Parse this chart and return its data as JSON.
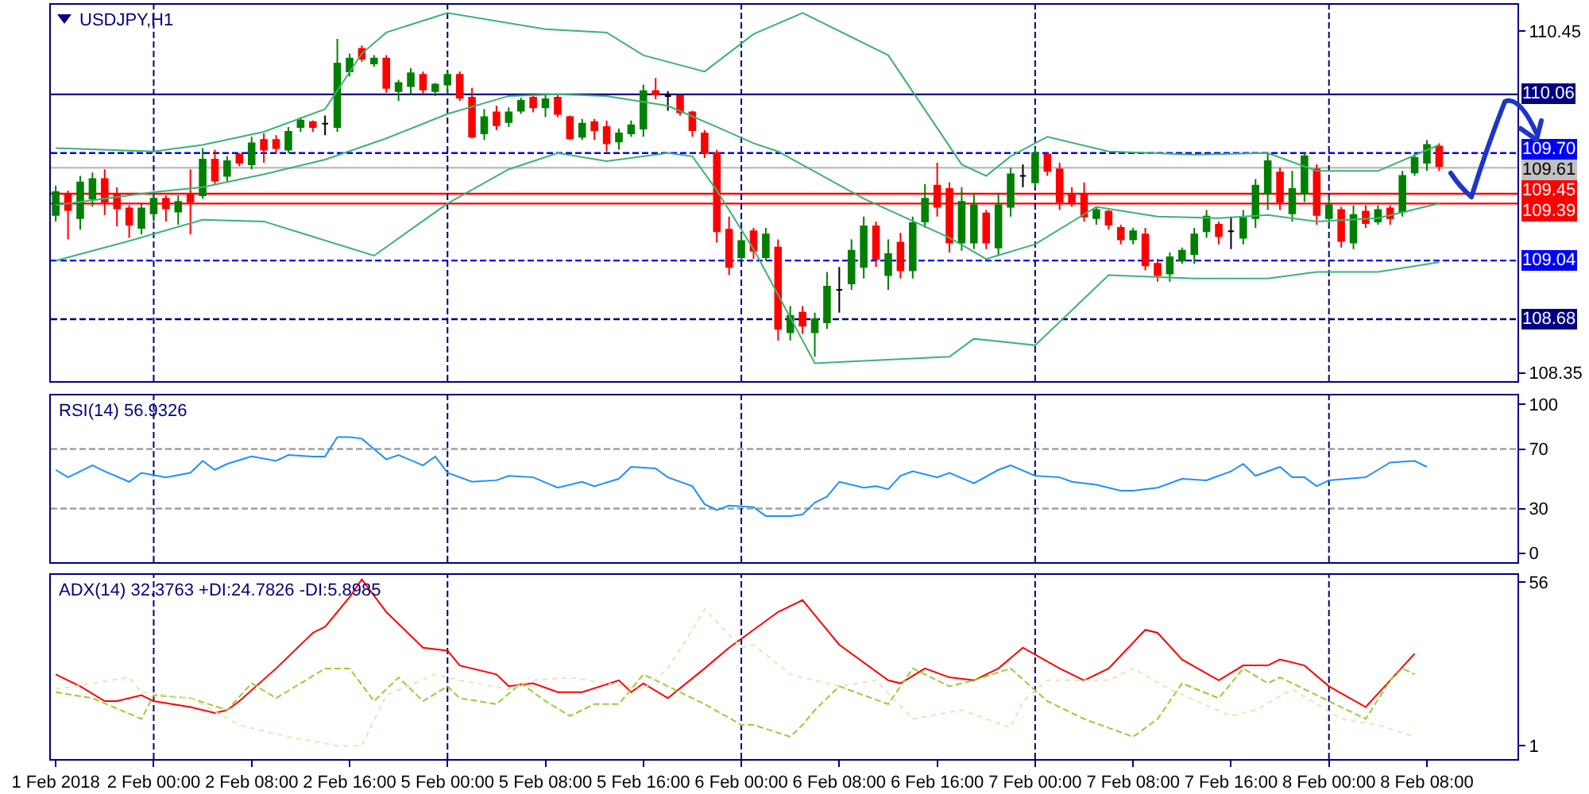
{
  "chart_data": [
    {
      "type": "candlestick",
      "title": "USDJPY,H1",
      "tick_labels": "y",
      "categories": [
        "1 Feb 2018",
        null,
        null,
        null,
        null,
        null,
        null,
        null,
        "2 Feb 00:00",
        null,
        null,
        null,
        null,
        null,
        null,
        null,
        "2 Feb 08:00",
        null,
        null,
        null,
        null,
        null,
        null,
        null,
        "2 Feb 16:00",
        null,
        null,
        null,
        null,
        null,
        null,
        null,
        "5 Feb 00:00",
        null,
        null,
        null,
        null,
        null,
        null,
        null,
        "5 Feb 08:00",
        null,
        null,
        null,
        null,
        null,
        null,
        null,
        "5 Feb 16:00",
        null,
        null,
        null,
        null,
        null,
        null,
        null,
        "6 Feb 00:00",
        null,
        null,
        null,
        null,
        null,
        null,
        null,
        "6 Feb 08:00",
        null,
        null,
        null,
        null,
        null,
        null,
        null,
        "6 Feb 16:00",
        null,
        null,
        null,
        null,
        null,
        null,
        null,
        "7 Feb 00:00",
        null,
        null,
        null,
        null,
        null,
        null,
        null,
        "7 Feb 08:00",
        null,
        null,
        null,
        null,
        null,
        null,
        null,
        "7 Feb 16:00",
        null,
        null,
        null,
        null,
        null,
        null,
        null,
        "8 Feb 00:00",
        null,
        null,
        null,
        null,
        null,
        null,
        null,
        "8 Feb 08:00",
        null
      ],
      "ylim": [
        108.3,
        110.61
      ],
      "yticks": [
        110.45,
        108.35
      ],
      "ohlc": [
        [
          109.32,
          109.5,
          109.28,
          109.46
        ],
        [
          109.44,
          109.47,
          109.17,
          109.35
        ],
        [
          109.3,
          109.56,
          109.23,
          109.52
        ],
        [
          109.42,
          109.58,
          109.37,
          109.54
        ],
        [
          109.54,
          109.6,
          109.32,
          109.4
        ],
        [
          109.45,
          109.49,
          109.25,
          109.36
        ],
        [
          109.36,
          109.38,
          109.18,
          109.26
        ],
        [
          109.24,
          109.39,
          109.2,
          109.36
        ],
        [
          109.33,
          109.45,
          109.28,
          109.42
        ],
        [
          109.42,
          109.44,
          109.28,
          109.36
        ],
        [
          109.34,
          109.44,
          109.26,
          109.4
        ],
        [
          109.44,
          109.6,
          109.2,
          109.4
        ],
        [
          109.44,
          109.73,
          109.42,
          109.66
        ],
        [
          109.66,
          109.72,
          109.51,
          109.53
        ],
        [
          109.56,
          109.68,
          109.52,
          109.65
        ],
        [
          109.69,
          109.7,
          109.62,
          109.64
        ],
        [
          109.63,
          109.8,
          109.6,
          109.76
        ],
        [
          109.78,
          109.82,
          109.64,
          109.72
        ],
        [
          109.78,
          109.81,
          109.7,
          109.73
        ],
        [
          109.72,
          109.86,
          109.7,
          109.83
        ],
        [
          109.86,
          109.92,
          109.83,
          109.9
        ],
        [
          109.89,
          109.9,
          109.83,
          109.86
        ],
        [
          109.88,
          109.93,
          109.81,
          109.88
        ],
        [
          109.86,
          110.4,
          109.83,
          110.25
        ],
        [
          110.2,
          110.31,
          110.17,
          110.28
        ],
        [
          110.34,
          110.36,
          110.26,
          110.28
        ],
        [
          110.25,
          110.3,
          110.23,
          110.28
        ],
        [
          110.28,
          110.3,
          110.07,
          110.1
        ],
        [
          110.08,
          110.15,
          110.02,
          110.13
        ],
        [
          110.11,
          110.22,
          110.06,
          110.19
        ],
        [
          110.18,
          110.2,
          110.06,
          110.09
        ],
        [
          110.08,
          110.13,
          110.05,
          110.12
        ],
        [
          110.12,
          110.2,
          110.06,
          110.18
        ],
        [
          110.18,
          110.2,
          110.02,
          110.04
        ],
        [
          110.04,
          110.1,
          109.79,
          109.8
        ],
        [
          109.82,
          109.97,
          109.78,
          109.92
        ],
        [
          109.95,
          109.99,
          109.84,
          109.87
        ],
        [
          109.89,
          109.98,
          109.86,
          109.95
        ],
        [
          109.96,
          110.04,
          109.94,
          110.02
        ],
        [
          110.04,
          110.06,
          109.95,
          109.98
        ],
        [
          109.98,
          110.06,
          109.92,
          110.03
        ],
        [
          110.04,
          110.06,
          109.92,
          109.94
        ],
        [
          109.92,
          109.93,
          109.78,
          109.79
        ],
        [
          109.8,
          109.91,
          109.78,
          109.88
        ],
        [
          109.89,
          109.91,
          109.78,
          109.84
        ],
        [
          109.86,
          109.9,
          109.71,
          109.76
        ],
        [
          109.77,
          109.85,
          109.72,
          109.82
        ],
        [
          109.82,
          109.9,
          109.8,
          109.87
        ],
        [
          109.85,
          110.12,
          109.8,
          110.08
        ],
        [
          110.08,
          110.16,
          110.03,
          110.06
        ],
        [
          110.05,
          110.08,
          109.96,
          110.05
        ],
        [
          110.05,
          110.06,
          109.93,
          109.95
        ],
        [
          109.95,
          109.96,
          109.8,
          109.84
        ],
        [
          109.82,
          109.84,
          109.67,
          109.7
        ],
        [
          109.7,
          109.72,
          109.15,
          109.22
        ],
        [
          109.23,
          109.31,
          108.95,
          109.0
        ],
        [
          109.06,
          109.21,
          109.04,
          109.16
        ],
        [
          109.22,
          109.24,
          109.05,
          109.1
        ],
        [
          109.06,
          109.24,
          109.04,
          109.2
        ],
        [
          109.12,
          109.17,
          108.55,
          108.62
        ],
        [
          108.6,
          108.76,
          108.55,
          108.7
        ],
        [
          108.72,
          108.76,
          108.59,
          108.64
        ],
        [
          108.6,
          108.72,
          108.45,
          108.68
        ],
        [
          108.66,
          108.97,
          108.62,
          108.88
        ],
        [
          108.86,
          109.0,
          108.72,
          108.86
        ],
        [
          108.9,
          109.17,
          108.86,
          109.1
        ],
        [
          109.0,
          109.31,
          108.93,
          109.25
        ],
        [
          109.25,
          109.28,
          109.0,
          109.05
        ],
        [
          108.95,
          109.17,
          108.86,
          109.08
        ],
        [
          109.15,
          109.21,
          108.93,
          108.98
        ],
        [
          108.98,
          109.31,
          108.93,
          109.27
        ],
        [
          109.28,
          109.51,
          109.24,
          109.42
        ],
        [
          109.5,
          109.64,
          109.31,
          109.37
        ],
        [
          109.48,
          109.52,
          109.09,
          109.15
        ],
        [
          109.15,
          109.49,
          109.1,
          109.4
        ],
        [
          109.15,
          109.45,
          109.11,
          109.38
        ],
        [
          109.33,
          109.35,
          109.11,
          109.15
        ],
        [
          109.12,
          109.45,
          109.07,
          109.38
        ],
        [
          109.37,
          109.61,
          109.31,
          109.57
        ],
        [
          109.56,
          109.63,
          109.49,
          109.56
        ],
        [
          109.52,
          109.73,
          109.49,
          109.7
        ],
        [
          109.69,
          109.7,
          109.56,
          109.59
        ],
        [
          109.6,
          109.64,
          109.35,
          109.4
        ],
        [
          109.44,
          109.49,
          109.37,
          109.39
        ],
        [
          109.45,
          109.52,
          109.28,
          109.31
        ],
        [
          109.3,
          109.37,
          109.26,
          109.35
        ],
        [
          109.34,
          109.35,
          109.23,
          109.26
        ],
        [
          109.24,
          109.26,
          109.14,
          109.17
        ],
        [
          109.17,
          109.24,
          109.14,
          109.22
        ],
        [
          109.2,
          109.24,
          108.98,
          109.01
        ],
        [
          109.02,
          109.05,
          108.91,
          108.95
        ],
        [
          108.96,
          109.09,
          108.91,
          109.06
        ],
        [
          109.04,
          109.12,
          109.02,
          109.1
        ],
        [
          109.08,
          109.24,
          109.02,
          109.2
        ],
        [
          109.22,
          109.35,
          109.18,
          109.31
        ],
        [
          109.26,
          109.28,
          109.14,
          109.19
        ],
        [
          109.22,
          109.31,
          109.11,
          109.22
        ],
        [
          109.18,
          109.35,
          109.14,
          109.3
        ],
        [
          109.3,
          109.54,
          109.24,
          109.5
        ],
        [
          109.45,
          109.7,
          109.35,
          109.65
        ],
        [
          109.58,
          109.61,
          109.35,
          109.4
        ],
        [
          109.33,
          109.59,
          109.28,
          109.48
        ],
        [
          109.45,
          109.7,
          109.4,
          109.68
        ],
        [
          109.6,
          109.63,
          109.26,
          109.32
        ],
        [
          109.3,
          109.44,
          109.26,
          109.38
        ],
        [
          109.35,
          109.37,
          109.12,
          109.16
        ],
        [
          109.15,
          109.38,
          109.11,
          109.32
        ],
        [
          109.34,
          109.38,
          109.24,
          109.27
        ],
        [
          109.28,
          109.38,
          109.26,
          109.35
        ],
        [
          109.36,
          109.38,
          109.26,
          109.3
        ],
        [
          109.34,
          109.59,
          109.31,
          109.56
        ],
        [
          109.58,
          109.7,
          109.56,
          109.67
        ],
        [
          109.64,
          109.78,
          109.59,
          109.75
        ],
        [
          109.74,
          109.76,
          109.59,
          109.62
        ]
      ],
      "colors": [
        "#008000",
        "#ff0000",
        "#008000",
        "#008000",
        "#ff0000",
        "#ff0000",
        "#ff0000",
        "#008000",
        "#008000",
        "#ff0000",
        "#008000",
        "#ff0000",
        "#008000",
        "#ff0000",
        "#008000",
        "#ff0000",
        "#008000",
        "#ff0000",
        "#ff0000",
        "#008000",
        "#008000",
        "#ff0000",
        "#000000",
        "#008000",
        "#008000",
        "#ff0000",
        "#008000",
        "#ff0000",
        "#008000",
        "#008000",
        "#ff0000",
        "#008000",
        "#008000",
        "#ff0000",
        "#ff0000",
        "#008000",
        "#ff0000",
        "#008000",
        "#008000",
        "#ff0000",
        "#008000",
        "#ff0000",
        "#ff0000",
        "#008000",
        "#ff0000",
        "#ff0000",
        "#008000",
        "#008000",
        "#008000",
        "#ff0000",
        "#000000",
        "#ff0000",
        "#ff0000",
        "#ff0000",
        "#ff0000",
        "#ff0000",
        "#008000",
        "#ff0000",
        "#008000",
        "#ff0000",
        "#008000",
        "#ff0000",
        "#008000",
        "#008000",
        "#000000",
        "#008000",
        "#008000",
        "#ff0000",
        "#008000",
        "#ff0000",
        "#008000",
        "#008000",
        "#ff0000",
        "#ff0000",
        "#008000",
        "#008000",
        "#ff0000",
        "#008000",
        "#008000",
        "#000000",
        "#008000",
        "#ff0000",
        "#ff0000",
        "#ff0000",
        "#ff0000",
        "#008000",
        "#ff0000",
        "#ff0000",
        "#008000",
        "#ff0000",
        "#ff0000",
        "#008000",
        "#008000",
        "#008000",
        "#008000",
        "#ff0000",
        "#000000",
        "#008000",
        "#008000",
        "#008000",
        "#ff0000",
        "#008000",
        "#008000",
        "#ff0000",
        "#008000",
        "#ff0000",
        "#008000",
        "#ff0000",
        "#008000",
        "#ff0000",
        "#008000",
        "#008000",
        "#008000",
        "#ff0000"
      ],
      "series": [
        {
          "type": "line",
          "color": "#3cb371",
          "values": [
            109.73,
            null,
            null,
            null,
            null,
            null,
            null,
            null,
            109.71,
            null,
            null,
            null,
            109.75,
            null,
            null,
            null,
            null,
            109.83,
            null,
            null,
            null,
            null,
            109.97,
            null,
            null,
            110.31,
            null,
            110.44,
            null,
            null,
            null,
            null,
            110.56,
            null,
            null,
            null,
            null,
            null,
            null,
            null,
            110.46,
            null,
            null,
            null,
            null,
            110.44,
            null,
            null,
            110.3,
            null,
            null,
            null,
            null,
            110.2,
            null,
            null,
            null,
            110.43,
            null,
            null,
            null,
            110.56,
            null,
            null,
            null,
            null,
            null,
            null,
            110.3,
            null,
            null,
            null,
            null,
            null,
            109.63,
            null,
            109.56,
            null,
            109.68,
            null,
            null,
            109.8,
            null,
            null,
            null,
            null,
            109.71,
            null,
            null,
            null,
            null,
            null,
            null,
            109.69,
            null,
            null,
            null,
            null,
            null,
            109.7,
            null,
            null,
            null,
            109.59,
            null,
            null,
            null,
            null,
            109.59,
            null,
            null,
            null,
            null,
            109.75
          ]
        },
        {
          "type": "line",
          "color": "#3cb371",
          "values": [
            109.38,
            null,
            null,
            null,
            null,
            null,
            null,
            null,
            109.46,
            null,
            null,
            null,
            109.49,
            null,
            null,
            null,
            null,
            109.57,
            null,
            null,
            null,
            null,
            109.66,
            null,
            null,
            null,
            null,
            109.79,
            null,
            null,
            null,
            null,
            109.94,
            null,
            null,
            null,
            null,
            110.05,
            null,
            null,
            null,
            110.06,
            null,
            null,
            null,
            110.05,
            null,
            null,
            null,
            null,
            109.99,
            null,
            null,
            null,
            109.86,
            null,
            null,
            109.76,
            null,
            109.71,
            null,
            null,
            null,
            null,
            null,
            null,
            109.42,
            null,
            null,
            null,
            null,
            null,
            null,
            109.18,
            null,
            null,
            109.05,
            null,
            null,
            null,
            109.14,
            null,
            null,
            null,
            null,
            109.37,
            null,
            null,
            null,
            null,
            109.31,
            null,
            null,
            null,
            null,
            109.3,
            null,
            null,
            null,
            109.32,
            null,
            null,
            null,
            109.28,
            null,
            null,
            null,
            null,
            109.3,
            null,
            null,
            null,
            null,
            109.39
          ]
        },
        {
          "type": "line",
          "color": "#3cb371",
          "values": [
            109.04,
            null,
            null,
            null,
            null,
            null,
            109.16,
            null,
            null,
            null,
            null,
            null,
            109.29,
            null,
            null,
            null,
            null,
            109.28,
            null,
            null,
            109.21,
            null,
            null,
            null,
            null,
            null,
            109.07,
            null,
            null,
            null,
            null,
            null,
            109.39,
            null,
            null,
            null,
            null,
            109.6,
            null,
            null,
            null,
            109.7,
            null,
            null,
            null,
            109.65,
            null,
            null,
            null,
            null,
            109.7,
            null,
            109.68,
            null,
            109.47,
            null,
            null,
            109.11,
            null,
            null,
            null,
            null,
            108.41,
            null,
            null,
            null,
            null,
            null,
            null,
            null,
            null,
            null,
            null,
            108.45,
            null,
            108.56,
            null,
            null,
            null,
            null,
            108.52,
            null,
            null,
            null,
            null,
            null,
            108.95,
            null,
            null,
            null,
            null,
            null,
            null,
            108.93,
            null,
            null,
            null,
            null,
            null,
            108.93,
            null,
            null,
            null,
            108.97,
            null,
            null,
            null,
            null,
            108.97,
            null,
            null,
            null,
            null,
            109.03
          ]
        }
      ],
      "ref_lines": [
        {
          "axis": "y",
          "value": 110.06,
          "label": "110.06",
          "color": "#000080",
          "line_style": "solid"
        },
        {
          "axis": "y",
          "value": 109.7,
          "label": "109.70",
          "color": "#0000ff",
          "line_style": "dashed"
        },
        {
          "axis": "y",
          "value": 109.61,
          "label": "109.61",
          "color": "#c0c0c0",
          "line_style": "solid"
        },
        {
          "axis": "y",
          "value": 109.45,
          "label": "109.45",
          "color": "#ff0000",
          "line_style": "solid"
        },
        {
          "axis": "y",
          "value": 109.39,
          "label": "109.39",
          "color": "#ff0000",
          "line_style": "solid"
        },
        {
          "axis": "y",
          "value": 109.04,
          "label": "109.04",
          "color": "#0000ff",
          "line_style": "dashed"
        },
        {
          "axis": "y",
          "value": 108.68,
          "label": "108.68",
          "color": "#000080",
          "line_style": "dashed"
        },
        {
          "axis": "x",
          "value": "2 Feb 00:00",
          "color": "#000080",
          "line_style": "dashed"
        },
        {
          "axis": "x",
          "value": "5 Feb 00:00",
          "color": "#000080",
          "line_style": "dashed"
        },
        {
          "axis": "x",
          "value": "6 Feb 00:00",
          "color": "#000080",
          "line_style": "dashed"
        },
        {
          "axis": "x",
          "value": "7 Feb 00:00",
          "color": "#000080",
          "line_style": "dashed"
        },
        {
          "axis": "x",
          "value": "8 Feb 00:00",
          "color": "#000080",
          "line_style": "dashed"
        }
      ]
    },
    {
      "type": "line",
      "title": "RSI(14) 56.9326",
      "tick_labels": "y",
      "categories": [
        "1 Feb 2018",
        null,
        null,
        null,
        null,
        null,
        null,
        null,
        "2 Feb 00:00",
        null,
        null,
        null,
        null,
        null,
        null,
        null,
        "2 Feb 08:00",
        null,
        null,
        null,
        null,
        null,
        null,
        null,
        "2 Feb 16:00",
        null,
        null,
        null,
        null,
        null,
        null,
        null,
        "5 Feb 00:00",
        null,
        null,
        null,
        null,
        null,
        null,
        null,
        "5 Feb 08:00",
        null,
        null,
        null,
        null,
        null,
        null,
        null,
        "5 Feb 16:00",
        null,
        null,
        null,
        null,
        null,
        null,
        null,
        "6 Feb 00:00",
        null,
        null,
        null,
        null,
        null,
        null,
        null,
        "6 Feb 08:00",
        null,
        null,
        null,
        null,
        null,
        null,
        null,
        "6 Feb 16:00",
        null,
        null,
        null,
        null,
        null,
        null,
        null,
        "7 Feb 00:00",
        null,
        null,
        null,
        null,
        null,
        null,
        null,
        "7 Feb 08:00",
        null,
        null,
        null,
        null,
        null,
        null,
        null,
        "7 Feb 16:00",
        null,
        null,
        null,
        null,
        null,
        null,
        null,
        "8 Feb 00:00",
        null,
        null,
        null,
        null,
        null,
        null,
        null,
        "8 Feb 08:00",
        null
      ],
      "ylim": [
        -6,
        106
      ],
      "yticks": [
        100,
        70,
        30,
        0
      ],
      "series": [
        {
          "color": "#1e90ff",
          "values": [
            56,
            51,
            null,
            59,
            55,
            null,
            48,
            54,
            null,
            51,
            null,
            54,
            62,
            56,
            60,
            null,
            65,
            null,
            62,
            66,
            null,
            65,
            65,
            78,
            78,
            77,
            null,
            63,
            66,
            null,
            59,
            65,
            54,
            null,
            48,
            null,
            49,
            52,
            null,
            51,
            null,
            44,
            null,
            48,
            45,
            null,
            50,
            58,
            null,
            57,
            51,
            null,
            45,
            33,
            29,
            32,
            null,
            31,
            25,
            null,
            25,
            26,
            34,
            38,
            48,
            null,
            44,
            45,
            43,
            52,
            55,
            null,
            51,
            54,
            null,
            47,
            null,
            56,
            59,
            null,
            52,
            null,
            51,
            48,
            null,
            46,
            null,
            42,
            42,
            null,
            44,
            null,
            50,
            null,
            49,
            null,
            55,
            60,
            52,
            null,
            58,
            51,
            51,
            45,
            49,
            null,
            null,
            51,
            56,
            61,
            null,
            62,
            58,
            null
          ]
        }
      ],
      "ref_lines": [
        {
          "axis": "y",
          "value": 70,
          "color": "#a0a0a0",
          "line_style": "dashed"
        },
        {
          "axis": "y",
          "value": 30,
          "color": "#a0a0a0",
          "line_style": "dashed"
        },
        {
          "axis": "x",
          "value": "2 Feb 00:00",
          "color": "#000080",
          "line_style": "dashed"
        },
        {
          "axis": "x",
          "value": "5 Feb 00:00",
          "color": "#000080",
          "line_style": "dashed"
        },
        {
          "axis": "x",
          "value": "6 Feb 00:00",
          "color": "#000080",
          "line_style": "dashed"
        },
        {
          "axis": "x",
          "value": "7 Feb 00:00",
          "color": "#000080",
          "line_style": "dashed"
        },
        {
          "axis": "x",
          "value": "8 Feb 00:00",
          "color": "#000080",
          "line_style": "dashed"
        }
      ]
    },
    {
      "type": "line",
      "title": "ADX(14) 32.3763 +DI:24.7826 -DI:5.8985",
      "categories": [
        "1 Feb 2018",
        null,
        null,
        null,
        null,
        null,
        null,
        null,
        "2 Feb 00:00",
        null,
        null,
        null,
        null,
        null,
        null,
        null,
        "2 Feb 08:00",
        null,
        null,
        null,
        null,
        null,
        null,
        null,
        "2 Feb 16:00",
        null,
        null,
        null,
        null,
        null,
        null,
        null,
        "5 Feb 00:00",
        null,
        null,
        null,
        null,
        null,
        null,
        null,
        "5 Feb 08:00",
        null,
        null,
        null,
        null,
        null,
        null,
        null,
        "5 Feb 16:00",
        null,
        null,
        null,
        null,
        null,
        null,
        null,
        "6 Feb 00:00",
        null,
        null,
        null,
        null,
        null,
        null,
        null,
        "6 Feb 08:00",
        null,
        null,
        null,
        null,
        null,
        null,
        null,
        "6 Feb 16:00",
        null,
        null,
        null,
        null,
        null,
        null,
        null,
        "7 Feb 00:00",
        null,
        null,
        null,
        null,
        null,
        null,
        null,
        "7 Feb 08:00",
        null,
        null,
        null,
        null,
        null,
        null,
        null,
        "7 Feb 16:00",
        null,
        null,
        null,
        null,
        null,
        null,
        null,
        "8 Feb 00:00",
        null,
        null,
        null,
        null,
        null,
        null,
        null,
        "8 Feb 08:00",
        null
      ],
      "ylim": [
        -3.5,
        58.5
      ],
      "yticks": [
        56,
        1
      ],
      "series": [
        {
          "color": "#ff0000",
          "line_style": "solid",
          "values": [
            25,
            null,
            21,
            null,
            16,
            16,
            null,
            18,
            16,
            null,
            null,
            14,
            null,
            12,
            13,
            16,
            null,
            null,
            27,
            null,
            null,
            39,
            41,
            null,
            51,
            57,
            null,
            46,
            null,
            null,
            34,
            null,
            33,
            28,
            null,
            null,
            25,
            21,
            null,
            22,
            null,
            19,
            null,
            19,
            null,
            null,
            23,
            19,
            22,
            null,
            17,
            null,
            null,
            27,
            null,
            34,
            null,
            40,
            null,
            46,
            null,
            50,
            45,
            null,
            35,
            null,
            null,
            null,
            23,
            22,
            null,
            27,
            null,
            24,
            null,
            23,
            null,
            27,
            null,
            34,
            null,
            null,
            27,
            null,
            23,
            null,
            27,
            null,
            null,
            40,
            39,
            null,
            30,
            null,
            null,
            23,
            null,
            28,
            null,
            28,
            30,
            null,
            28,
            null,
            21,
            null,
            null,
            14,
            null,
            23,
            null,
            32,
            null,
            null
          ]
        },
        {
          "color": "#9acd32",
          "line_style": "dashed",
          "values": [
            19,
            null,
            null,
            17,
            null,
            null,
            null,
            10,
            18,
            null,
            null,
            17,
            null,
            null,
            13,
            null,
            22,
            null,
            17,
            null,
            22,
            null,
            27,
            null,
            27,
            null,
            16,
            null,
            24,
            null,
            16,
            null,
            21,
            17,
            null,
            null,
            15,
            null,
            22,
            null,
            16,
            null,
            11,
            null,
            15,
            null,
            15,
            null,
            25,
            null,
            21,
            null,
            null,
            15,
            null,
            null,
            8,
            8,
            null,
            null,
            4,
            8,
            13,
            null,
            21,
            null,
            null,
            null,
            15,
            null,
            27,
            null,
            null,
            21,
            null,
            23,
            null,
            null,
            27,
            null,
            null,
            16,
            null,
            null,
            10,
            null,
            null,
            null,
            4,
            null,
            10,
            null,
            22,
            null,
            null,
            17,
            null,
            27,
            null,
            22,
            24,
            null,
            null,
            null,
            16,
            null,
            null,
            10,
            null,
            23,
            27,
            25,
            null,
            null
          ]
        },
        {
          "color": "#f5deb3",
          "line_style": "dotted",
          "values": [
            20,
            null,
            null,
            null,
            null,
            null,
            24,
            19,
            null,
            null,
            null,
            17,
            null,
            null,
            null,
            8,
            null,
            null,
            null,
            4,
            null,
            null,
            null,
            1,
            null,
            1,
            null,
            18,
            null,
            null,
            null,
            25,
            null,
            23,
            null,
            null,
            null,
            20,
            null,
            23,
            null,
            null,
            24,
            null,
            null,
            22,
            null,
            null,
            20,
            null,
            27,
            null,
            40,
            47,
            null,
            null,
            34,
            35,
            null,
            null,
            25,
            null,
            null,
            null,
            21,
            null,
            null,
            23,
            null,
            null,
            10,
            null,
            null,
            null,
            13,
            null,
            null,
            null,
            7,
            16,
            null,
            23,
            null,
            null,
            null,
            null,
            23,
            null,
            27,
            null,
            null,
            20,
            null,
            null,
            null,
            null,
            11,
            null,
            13,
            null,
            null,
            20,
            null,
            null,
            null,
            10,
            null,
            null,
            8,
            null,
            null,
            4,
            null,
            null
          ]
        }
      ],
      "ref_lines": [
        {
          "axis": "x",
          "value": "2 Feb 00:00",
          "color": "#000080",
          "line_style": "dashed"
        },
        {
          "axis": "x",
          "value": "5 Feb 00:00",
          "color": "#000080",
          "line_style": "dashed"
        },
        {
          "axis": "x",
          "value": "6 Feb 00:00",
          "color": "#000080",
          "line_style": "dashed"
        },
        {
          "axis": "x",
          "value": "7 Feb 00:00",
          "color": "#000080",
          "line_style": "dashed"
        },
        {
          "axis": "x",
          "value": "8 Feb 00:00",
          "color": "#000080",
          "line_style": "dashed"
        }
      ]
    }
  ]
}
